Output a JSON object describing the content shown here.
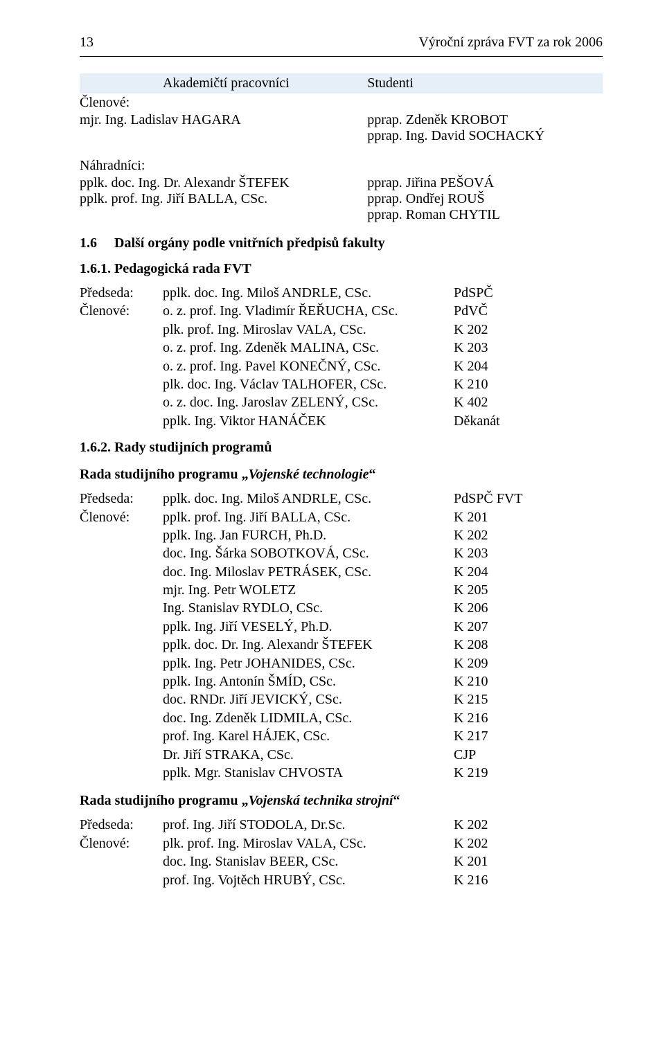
{
  "header": {
    "page_number": "13",
    "title": "Výroční zpráva FVT za rok 2006"
  },
  "banner": {
    "left": "Akademičtí pracovníci",
    "right": "Studenti"
  },
  "labels": {
    "members": "Členové:",
    "substitutes": "Náhradníci:",
    "chairman": "Předseda:"
  },
  "members_block": {
    "left": [
      "mjr. Ing. Ladislav HAGARA"
    ],
    "right": [
      "pprap. Zdeněk KROBOT",
      "pprap. Ing. David SOCHACKÝ"
    ]
  },
  "subs_block": {
    "left": [
      "pplk. doc. Ing. Dr. Alexandr ŠTEFEK",
      "pplk. prof. Ing. Jiří BALLA, CSc."
    ],
    "right": [
      "pprap. Jiřina PEŠOVÁ",
      "pprap. Ondřej ROUŠ",
      "pprap. Roman CHYTIL"
    ]
  },
  "sec16": {
    "num": "1.6",
    "title": "Další orgány podle vnitřních předpisů fakulty"
  },
  "sec161": {
    "num_title": "1.6.1.  Pedagogická rada  FVT"
  },
  "rada161": {
    "chair": {
      "who": "pplk. doc. Ing. Miloš ANDRLE, CSc.",
      "dept": "PdSPČ"
    },
    "rows": [
      {
        "who": "o. z. prof. Ing. Vladimír ŘEŘUCHA, CSc.",
        "dept": "PdVČ"
      },
      {
        "who": "plk. prof. Ing. Miroslav VALA, CSc.",
        "dept": "K 202"
      },
      {
        "who": "o. z. prof. Ing. Zdeněk MALINA, CSc.",
        "dept": "K 203"
      },
      {
        "who": "o. z. prof. Ing. Pavel KONEČNÝ, CSc.",
        "dept": "K 204"
      },
      {
        "who": "plk. doc. Ing. Václav TALHOFER, CSc.",
        "dept": "K 210"
      },
      {
        "who": "o. z. doc. Ing. Jaroslav ZELENÝ, CSc.",
        "dept": "K 402"
      },
      {
        "who": "pplk. Ing. Viktor HANÁČEK",
        "dept": "Děkanát"
      }
    ]
  },
  "sec162": {
    "num_title": "1.6.2.  Rady studijních programů"
  },
  "prog_vt": {
    "title_prefix": "Rada studijního programu „",
    "title_name": "Vojenské technologie",
    "title_suffix": "“",
    "chair": {
      "who": "pplk. doc. Ing. Miloš ANDRLE, CSc.",
      "dept": "PdSPČ FVT"
    },
    "rows": [
      {
        "who": "pplk. prof. Ing. Jiří BALLA, CSc.",
        "dept": "K 201"
      },
      {
        "who": "pplk. Ing. Jan FURCH, Ph.D.",
        "dept": "K 202"
      },
      {
        "who": "doc. Ing. Šárka SOBOTKOVÁ, CSc.",
        "dept": "K 203"
      },
      {
        "who": "doc. Ing. Miloslav PETRÁSEK, CSc.",
        "dept": "K 204"
      },
      {
        "who": "mjr. Ing. Petr WOLETZ",
        "dept": "K 205"
      },
      {
        "who": "Ing. Stanislav RYDLO, CSc.",
        "dept": "K 206"
      },
      {
        "who": "pplk. Ing. Jiří VESELÝ, Ph.D.",
        "dept": "K 207"
      },
      {
        "who": "pplk. doc. Dr. Ing. Alexandr ŠTEFEK",
        "dept": "K 208"
      },
      {
        "who": "pplk. Ing. Petr JOHANIDES, CSc.",
        "dept": "K 209"
      },
      {
        "who": "pplk. Ing. Antonín ŠMÍD, CSc.",
        "dept": "K 210"
      },
      {
        "who": "doc. RNDr. Jiří JEVICKÝ, CSc.",
        "dept": "K 215"
      },
      {
        "who": "doc. Ing. Zdeněk LIDMILA, CSc.",
        "dept": "K 216"
      },
      {
        "who": "prof. Ing. Karel HÁJEK, CSc.",
        "dept": "K 217"
      },
      {
        "who": "Dr. Jiří STRAKA, CSc.",
        "dept": "CJP"
      },
      {
        "who": "pplk. Mgr. Stanislav CHVOSTA",
        "dept": "K 219"
      }
    ]
  },
  "prog_vts": {
    "title_prefix": "Rada studijního programu „",
    "title_name": "Vojenská technika strojní",
    "title_suffix": "“",
    "chair": {
      "who": "prof. Ing. Jiří STODOLA, Dr.Sc.",
      "dept": "K 202"
    },
    "rows": [
      {
        "who": "plk. prof. Ing. Miroslav VALA, CSc.",
        "dept": "K 202"
      },
      {
        "who": "doc. Ing. Stanislav BEER, CSc.",
        "dept": "K 201"
      },
      {
        "who": "prof. Ing. Vojtěch HRUBÝ, CSc.",
        "dept": "K 216"
      }
    ]
  }
}
